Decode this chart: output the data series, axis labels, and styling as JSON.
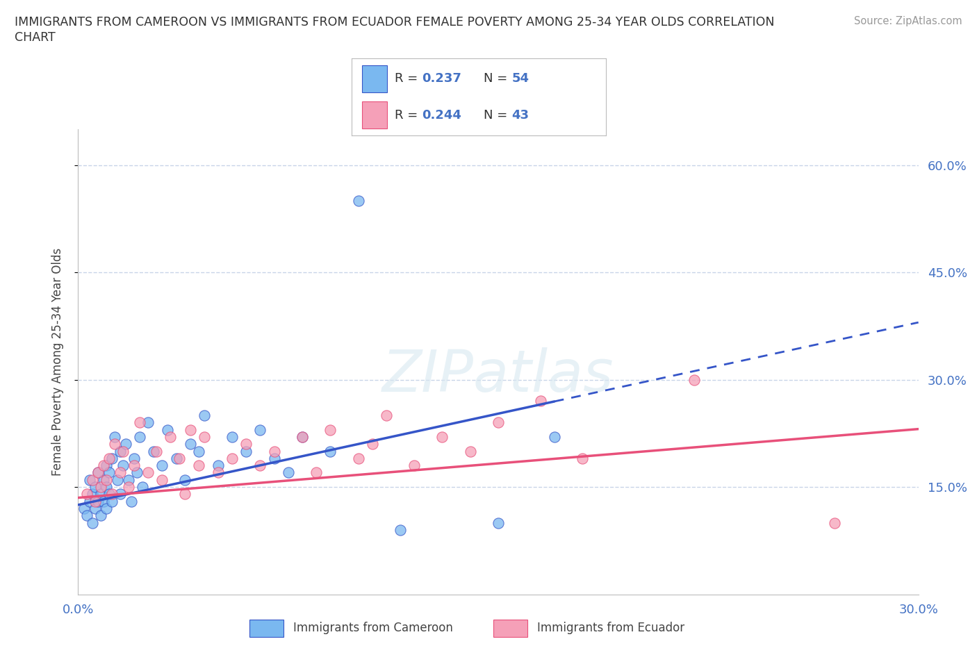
{
  "title_line1": "IMMIGRANTS FROM CAMEROON VS IMMIGRANTS FROM ECUADOR FEMALE POVERTY AMONG 25-34 YEAR OLDS CORRELATION",
  "title_line2": "CHART",
  "source": "Source: ZipAtlas.com",
  "ylabel": "Female Poverty Among 25-34 Year Olds",
  "xlim": [
    0.0,
    0.3
  ],
  "ylim": [
    0.0,
    0.65
  ],
  "yticks": [
    0.15,
    0.3,
    0.45,
    0.6
  ],
  "ytick_labels": [
    "15.0%",
    "30.0%",
    "45.0%",
    "60.0%"
  ],
  "xticks": [
    0.0,
    0.05,
    0.1,
    0.15,
    0.2,
    0.25,
    0.3
  ],
  "xtick_labels": [
    "0.0%",
    "",
    "",
    "",
    "",
    "",
    "30.0%"
  ],
  "cameroon_R": 0.237,
  "cameroon_N": 54,
  "ecuador_R": 0.244,
  "ecuador_N": 43,
  "cameroon_color": "#7ab8f0",
  "ecuador_color": "#f5a0b8",
  "cameroon_line_color": "#3555c8",
  "ecuador_line_color": "#e8507a",
  "watermark_text": "ZIPatlas",
  "background_color": "#ffffff",
  "grid_color": "#c8d4e8",
  "cam_line_solid_end": 0.17,
  "ecu_line_solid_end": 0.3,
  "cam_intercept": 0.125,
  "cam_slope": 0.85,
  "ecu_intercept": 0.135,
  "ecu_slope": 0.32,
  "cameroon_x": [
    0.002,
    0.003,
    0.004,
    0.004,
    0.005,
    0.005,
    0.006,
    0.006,
    0.007,
    0.007,
    0.008,
    0.008,
    0.009,
    0.009,
    0.01,
    0.01,
    0.01,
    0.011,
    0.011,
    0.012,
    0.012,
    0.013,
    0.014,
    0.015,
    0.015,
    0.016,
    0.017,
    0.018,
    0.019,
    0.02,
    0.021,
    0.022,
    0.023,
    0.025,
    0.027,
    0.03,
    0.032,
    0.035,
    0.038,
    0.04,
    0.043,
    0.045,
    0.05,
    0.055,
    0.06,
    0.065,
    0.07,
    0.075,
    0.08,
    0.09,
    0.1,
    0.115,
    0.15,
    0.17
  ],
  "cameroon_y": [
    0.12,
    0.11,
    0.13,
    0.16,
    0.1,
    0.14,
    0.12,
    0.15,
    0.13,
    0.17,
    0.11,
    0.14,
    0.13,
    0.16,
    0.12,
    0.15,
    0.18,
    0.14,
    0.17,
    0.13,
    0.19,
    0.22,
    0.16,
    0.14,
    0.2,
    0.18,
    0.21,
    0.16,
    0.13,
    0.19,
    0.17,
    0.22,
    0.15,
    0.24,
    0.2,
    0.18,
    0.23,
    0.19,
    0.16,
    0.21,
    0.2,
    0.25,
    0.18,
    0.22,
    0.2,
    0.23,
    0.19,
    0.17,
    0.22,
    0.2,
    0.55,
    0.09,
    0.1,
    0.22
  ],
  "ecuador_x": [
    0.003,
    0.005,
    0.006,
    0.007,
    0.008,
    0.009,
    0.01,
    0.011,
    0.012,
    0.013,
    0.015,
    0.016,
    0.018,
    0.02,
    0.022,
    0.025,
    0.028,
    0.03,
    0.033,
    0.036,
    0.038,
    0.04,
    0.043,
    0.045,
    0.05,
    0.055,
    0.06,
    0.065,
    0.07,
    0.08,
    0.085,
    0.09,
    0.1,
    0.105,
    0.11,
    0.12,
    0.13,
    0.14,
    0.15,
    0.165,
    0.18,
    0.22,
    0.27
  ],
  "ecuador_y": [
    0.14,
    0.16,
    0.13,
    0.17,
    0.15,
    0.18,
    0.16,
    0.19,
    0.14,
    0.21,
    0.17,
    0.2,
    0.15,
    0.18,
    0.24,
    0.17,
    0.2,
    0.16,
    0.22,
    0.19,
    0.14,
    0.23,
    0.18,
    0.22,
    0.17,
    0.19,
    0.21,
    0.18,
    0.2,
    0.22,
    0.17,
    0.23,
    0.19,
    0.21,
    0.25,
    0.18,
    0.22,
    0.2,
    0.24,
    0.27,
    0.19,
    0.3,
    0.1
  ]
}
